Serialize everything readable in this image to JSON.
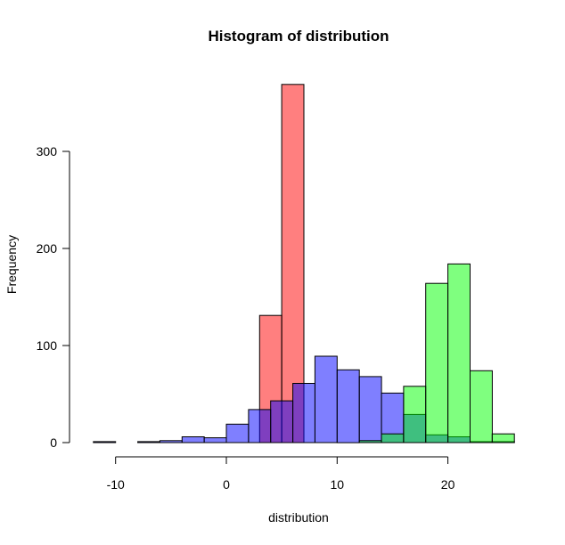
{
  "chart_data": {
    "type": "bar",
    "title": "Histogram of distribution",
    "xlabel": "distribution",
    "ylabel": "Frequency",
    "xlim": [
      -12,
      26
    ],
    "ylim": [
      0,
      370
    ],
    "xticks": [
      -10,
      0,
      10,
      20
    ],
    "yticks": [
      0,
      100,
      200,
      300
    ],
    "grid": false,
    "series": [
      {
        "color": "#ff000080",
        "bins": [
          [
            3,
            5,
            131
          ],
          [
            5,
            7,
            369
          ]
        ]
      },
      {
        "color": "#0000ff80",
        "bins": [
          [
            -12,
            -10,
            1
          ],
          [
            -10,
            -8,
            0
          ],
          [
            -8,
            -6,
            1
          ],
          [
            -6,
            -4,
            2
          ],
          [
            -4,
            -2,
            6
          ],
          [
            -2,
            0,
            5
          ],
          [
            0,
            2,
            19
          ],
          [
            2,
            4,
            34
          ],
          [
            4,
            6,
            43
          ],
          [
            6,
            8,
            61
          ],
          [
            8,
            10,
            89
          ],
          [
            10,
            12,
            75
          ],
          [
            12,
            14,
            68
          ],
          [
            14,
            16,
            51
          ],
          [
            16,
            18,
            29
          ],
          [
            18,
            20,
            8
          ],
          [
            20,
            22,
            6
          ],
          [
            22,
            24,
            1
          ],
          [
            24,
            26,
            1
          ]
        ]
      },
      {
        "color": "#00ff0080",
        "bins": [
          [
            12,
            14,
            2
          ],
          [
            14,
            16,
            9
          ],
          [
            16,
            18,
            58
          ],
          [
            18,
            20,
            164
          ],
          [
            20,
            22,
            184
          ],
          [
            22,
            24,
            74
          ],
          [
            24,
            26,
            9
          ]
        ]
      }
    ]
  }
}
